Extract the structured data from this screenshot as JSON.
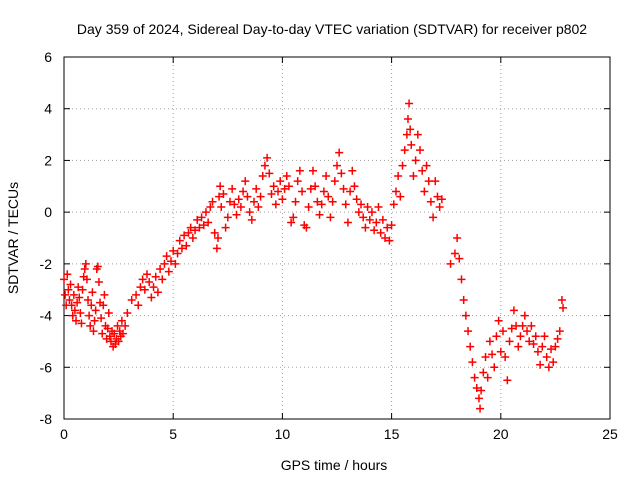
{
  "chart_data": {
    "type": "scatter",
    "title": "Day 359 of 2024, Sidereal Day-to-day VTEC variation (SDTVAR) for receiver p802",
    "xlabel": "GPS time / hours",
    "ylabel": "SDTVAR / TECUs",
    "xlim": [
      0,
      25
    ],
    "ylim": [
      -8,
      6
    ],
    "xticks": [
      0,
      5,
      10,
      15,
      20,
      25
    ],
    "yticks": [
      -8,
      -6,
      -4,
      -2,
      0,
      2,
      4,
      6
    ],
    "grid": true,
    "marker": "+",
    "color": "#ff0000",
    "series": [
      {
        "name": "SDTVAR",
        "points": [
          [
            0.0,
            -2.6
          ],
          [
            0.05,
            -3.2
          ],
          [
            0.1,
            -3.6
          ],
          [
            0.15,
            -2.4
          ],
          [
            0.2,
            -3.0
          ],
          [
            0.25,
            -3.4
          ],
          [
            0.3,
            -2.8
          ],
          [
            0.35,
            -3.6
          ],
          [
            0.4,
            -4.0
          ],
          [
            0.45,
            -3.2
          ],
          [
            0.5,
            -3.8
          ],
          [
            0.55,
            -4.2
          ],
          [
            0.6,
            -3.5
          ],
          [
            0.65,
            -2.9
          ],
          [
            0.7,
            -3.3
          ],
          [
            0.75,
            -3.9
          ],
          [
            0.8,
            -4.3
          ],
          [
            0.85,
            -3.0
          ],
          [
            0.9,
            -2.5
          ],
          [
            0.95,
            -2.2
          ],
          [
            1.0,
            -2.0
          ],
          [
            1.05,
            -2.6
          ],
          [
            1.1,
            -3.4
          ],
          [
            1.15,
            -4.0
          ],
          [
            1.2,
            -4.4
          ],
          [
            1.25,
            -3.6
          ],
          [
            1.3,
            -3.1
          ],
          [
            1.35,
            -4.6
          ],
          [
            1.4,
            -4.2
          ],
          [
            1.45,
            -3.8
          ],
          [
            1.5,
            -2.2
          ],
          [
            1.55,
            -2.1
          ],
          [
            1.6,
            -2.7
          ],
          [
            1.65,
            -3.5
          ],
          [
            1.7,
            -4.1
          ],
          [
            1.75,
            -4.7
          ],
          [
            1.8,
            -3.6
          ],
          [
            1.85,
            -3.2
          ],
          [
            1.9,
            -4.4
          ],
          [
            1.95,
            -4.9
          ],
          [
            2.0,
            -4.5
          ],
          [
            2.05,
            -3.9
          ],
          [
            2.1,
            -4.8
          ],
          [
            2.15,
            -5.0
          ],
          [
            2.2,
            -4.6
          ],
          [
            2.25,
            -5.2
          ],
          [
            2.3,
            -4.7
          ],
          [
            2.35,
            -5.1
          ],
          [
            2.4,
            -4.9
          ],
          [
            2.45,
            -4.4
          ],
          [
            2.5,
            -5.0
          ],
          [
            2.55,
            -4.6
          ],
          [
            2.6,
            -4.8
          ],
          [
            2.65,
            -4.2
          ],
          [
            2.7,
            -4.7
          ],
          [
            2.8,
            -4.4
          ],
          [
            2.9,
            -3.9
          ],
          [
            3.1,
            -3.4
          ],
          [
            3.3,
            -3.2
          ],
          [
            3.4,
            -3.6
          ],
          [
            3.5,
            -2.9
          ],
          [
            3.6,
            -2.6
          ],
          [
            3.7,
            -3.0
          ],
          [
            3.8,
            -2.4
          ],
          [
            3.9,
            -2.7
          ],
          [
            4.0,
            -3.3
          ],
          [
            4.1,
            -2.9
          ],
          [
            4.2,
            -2.5
          ],
          [
            4.3,
            -3.1
          ],
          [
            4.4,
            -2.2
          ],
          [
            4.5,
            -2.6
          ],
          [
            4.6,
            -2.0
          ],
          [
            4.7,
            -1.7
          ],
          [
            4.8,
            -2.3
          ],
          [
            4.9,
            -1.9
          ],
          [
            5.0,
            -1.5
          ],
          [
            5.1,
            -2.0
          ],
          [
            5.2,
            -1.6
          ],
          [
            5.3,
            -1.1
          ],
          [
            5.4,
            -1.4
          ],
          [
            5.5,
            -0.9
          ],
          [
            5.6,
            -1.3
          ],
          [
            5.7,
            -0.8
          ],
          [
            5.8,
            -0.6
          ],
          [
            5.9,
            -1.0
          ],
          [
            6.0,
            -0.7
          ],
          [
            6.1,
            -0.3
          ],
          [
            6.2,
            -0.6
          ],
          [
            6.3,
            -0.2
          ],
          [
            6.4,
            -0.5
          ],
          [
            6.5,
            0.0
          ],
          [
            6.6,
            -0.4
          ],
          [
            6.7,
            0.2
          ],
          [
            6.8,
            0.4
          ],
          [
            6.9,
            -0.8
          ],
          [
            7.0,
            -1.4
          ],
          [
            7.05,
            -1.0
          ],
          [
            7.1,
            0.6
          ],
          [
            7.15,
            1.0
          ],
          [
            7.2,
            0.2
          ],
          [
            7.3,
            0.7
          ],
          [
            7.4,
            -0.6
          ],
          [
            7.5,
            -0.2
          ],
          [
            7.6,
            0.4
          ],
          [
            7.7,
            0.9
          ],
          [
            7.8,
            0.3
          ],
          [
            7.9,
            -0.1
          ],
          [
            8.0,
            0.5
          ],
          [
            8.1,
            0.2
          ],
          [
            8.2,
            0.8
          ],
          [
            8.3,
            1.2
          ],
          [
            8.4,
            0.6
          ],
          [
            8.5,
            0.0
          ],
          [
            8.6,
            -0.3
          ],
          [
            8.7,
            0.4
          ],
          [
            8.8,
            0.9
          ],
          [
            8.9,
            0.2
          ],
          [
            9.0,
            0.6
          ],
          [
            9.1,
            1.4
          ],
          [
            9.2,
            1.8
          ],
          [
            9.3,
            2.1
          ],
          [
            9.4,
            1.5
          ],
          [
            9.5,
            0.7
          ],
          [
            9.6,
            1.0
          ],
          [
            9.7,
            0.3
          ],
          [
            9.8,
            0.8
          ],
          [
            9.9,
            1.2
          ],
          [
            10.0,
            0.5
          ],
          [
            10.1,
            0.9
          ],
          [
            10.2,
            1.4
          ],
          [
            10.3,
            1.0
          ],
          [
            10.4,
            -0.4
          ],
          [
            10.5,
            -0.2
          ],
          [
            10.6,
            0.4
          ],
          [
            10.7,
            1.2
          ],
          [
            10.8,
            1.6
          ],
          [
            10.9,
            0.8
          ],
          [
            11.0,
            -0.5
          ],
          [
            11.1,
            -0.6
          ],
          [
            11.2,
            0.2
          ],
          [
            11.3,
            0.9
          ],
          [
            11.4,
            1.6
          ],
          [
            11.5,
            1.0
          ],
          [
            11.6,
            0.4
          ],
          [
            11.7,
            -0.1
          ],
          [
            11.8,
            0.3
          ],
          [
            11.9,
            0.8
          ],
          [
            12.0,
            1.4
          ],
          [
            12.1,
            0.6
          ],
          [
            12.2,
            -0.2
          ],
          [
            12.3,
            0.4
          ],
          [
            12.4,
            1.2
          ],
          [
            12.5,
            1.8
          ],
          [
            12.6,
            2.3
          ],
          [
            12.7,
            1.5
          ],
          [
            12.8,
            0.9
          ],
          [
            12.9,
            0.3
          ],
          [
            13.0,
            -0.4
          ],
          [
            13.1,
            0.8
          ],
          [
            13.2,
            1.6
          ],
          [
            13.3,
            1.0
          ],
          [
            13.4,
            0.5
          ],
          [
            13.5,
            0.0
          ],
          [
            13.6,
            0.3
          ],
          [
            13.7,
            -0.2
          ],
          [
            13.8,
            -0.6
          ],
          [
            13.9,
            0.2
          ],
          [
            14.0,
            -0.3
          ],
          [
            14.1,
            0.0
          ],
          [
            14.2,
            -0.7
          ],
          [
            14.3,
            -0.4
          ],
          [
            14.4,
            0.2
          ],
          [
            14.5,
            -0.8
          ],
          [
            14.6,
            -0.3
          ],
          [
            14.7,
            -1.0
          ],
          [
            14.8,
            -0.6
          ],
          [
            14.9,
            -1.1
          ],
          [
            15.0,
            -0.5
          ],
          [
            15.1,
            0.3
          ],
          [
            15.2,
            0.8
          ],
          [
            15.3,
            1.4
          ],
          [
            15.4,
            0.6
          ],
          [
            15.5,
            1.8
          ],
          [
            15.6,
            2.4
          ],
          [
            15.7,
            3.0
          ],
          [
            15.75,
            3.6
          ],
          [
            15.8,
            4.2
          ],
          [
            15.85,
            3.2
          ],
          [
            15.9,
            2.6
          ],
          [
            16.0,
            1.4
          ],
          [
            16.1,
            2.0
          ],
          [
            16.2,
            3.0
          ],
          [
            16.3,
            2.4
          ],
          [
            16.4,
            1.6
          ],
          [
            16.5,
            0.8
          ],
          [
            16.6,
            1.8
          ],
          [
            16.7,
            1.2
          ],
          [
            16.8,
            0.4
          ],
          [
            16.9,
            -0.2
          ],
          [
            17.0,
            1.2
          ],
          [
            17.1,
            0.6
          ],
          [
            17.2,
            0.2
          ],
          [
            17.3,
            0.5
          ],
          [
            17.7,
            -2.0
          ],
          [
            17.9,
            -1.6
          ],
          [
            18.0,
            -1.0
          ],
          [
            18.1,
            -1.8
          ],
          [
            18.2,
            -2.6
          ],
          [
            18.3,
            -3.4
          ],
          [
            18.4,
            -4.0
          ],
          [
            18.5,
            -4.6
          ],
          [
            18.6,
            -5.2
          ],
          [
            18.7,
            -5.8
          ],
          [
            18.8,
            -6.4
          ],
          [
            18.9,
            -6.8
          ],
          [
            19.0,
            -7.2
          ],
          [
            19.05,
            -7.6
          ],
          [
            19.1,
            -6.9
          ],
          [
            19.2,
            -6.2
          ],
          [
            19.3,
            -5.6
          ],
          [
            19.4,
            -6.4
          ],
          [
            19.5,
            -5.0
          ],
          [
            19.6,
            -5.5
          ],
          [
            19.7,
            -6.0
          ],
          [
            19.8,
            -4.8
          ],
          [
            19.9,
            -4.2
          ],
          [
            20.0,
            -5.4
          ],
          [
            20.1,
            -4.6
          ],
          [
            20.2,
            -5.6
          ],
          [
            20.3,
            -6.5
          ],
          [
            20.4,
            -5.0
          ],
          [
            20.5,
            -4.5
          ],
          [
            20.6,
            -3.8
          ],
          [
            20.7,
            -4.4
          ],
          [
            20.8,
            -5.2
          ],
          [
            20.9,
            -4.8
          ],
          [
            21.0,
            -4.4
          ],
          [
            21.1,
            -4.0
          ],
          [
            21.2,
            -4.6
          ],
          [
            21.3,
            -5.0
          ],
          [
            21.4,
            -4.4
          ],
          [
            21.5,
            -5.1
          ],
          [
            21.6,
            -4.8
          ],
          [
            21.7,
            -5.4
          ],
          [
            21.8,
            -5.9
          ],
          [
            21.9,
            -5.2
          ],
          [
            22.0,
            -4.8
          ],
          [
            22.1,
            -5.6
          ],
          [
            22.2,
            -6.0
          ],
          [
            22.3,
            -5.3
          ],
          [
            22.4,
            -5.8
          ],
          [
            22.5,
            -5.2
          ],
          [
            22.6,
            -4.9
          ],
          [
            22.7,
            -4.6
          ],
          [
            22.8,
            -3.4
          ],
          [
            22.85,
            -3.7
          ]
        ]
      }
    ]
  }
}
